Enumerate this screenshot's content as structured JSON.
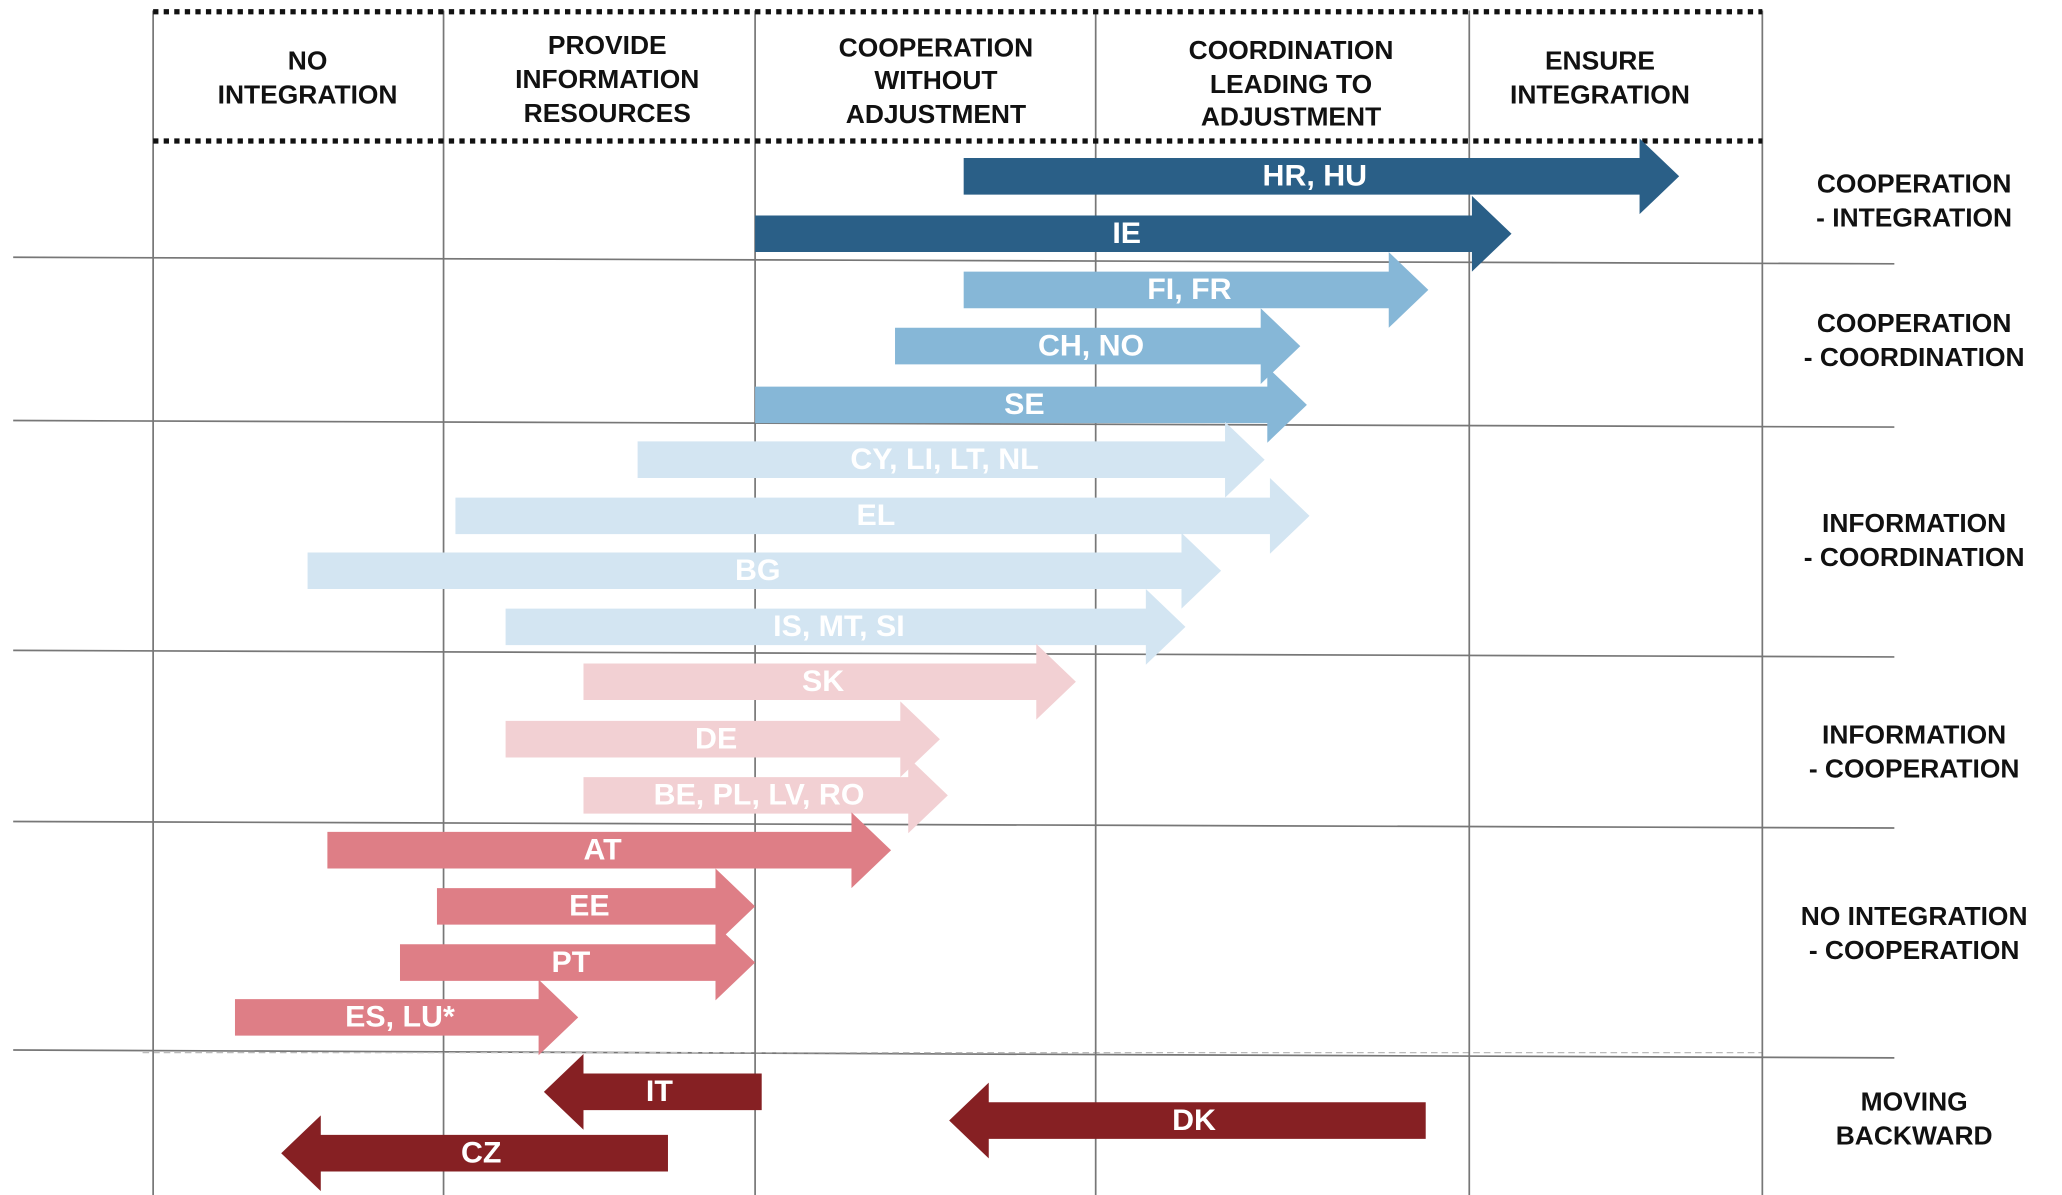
{
  "columns": [
    [
      "NO",
      "INTEGRATION"
    ],
    [
      "PROVIDE",
      "INFORMATION",
      "RESOURCES"
    ],
    [
      "COOPERATION",
      "WITHOUT",
      "ADJUSTMENT"
    ],
    [
      "COORDINATION",
      "LEADING TO",
      "ADJUSTMENT"
    ],
    [
      "ENSURE",
      "INTEGRATION"
    ]
  ],
  "groups": [
    [
      "COOPERATION",
      "- INTEGRATION"
    ],
    [
      "COOPERATION",
      "- COORDINATION"
    ],
    [
      "INFORMATION",
      "- COORDINATION"
    ],
    [
      "INFORMATION",
      "- COOPERATION"
    ],
    [
      "NO INTEGRATION",
      "- COOPERATION"
    ],
    [
      "MOVING",
      "BACKWARD"
    ]
  ],
  "arrows": [
    "HR, HU",
    "IE",
    "FI, FR",
    "CH, NO",
    "SE",
    "CY, LI, LT, NL",
    "EL",
    "BG",
    "IS, MT, SI",
    "SK",
    "DE",
    "BE, PL, LV, RO",
    "AT",
    "EE",
    "PT",
    "ES, LU*",
    "IT",
    "DK",
    "CZ"
  ]
}
